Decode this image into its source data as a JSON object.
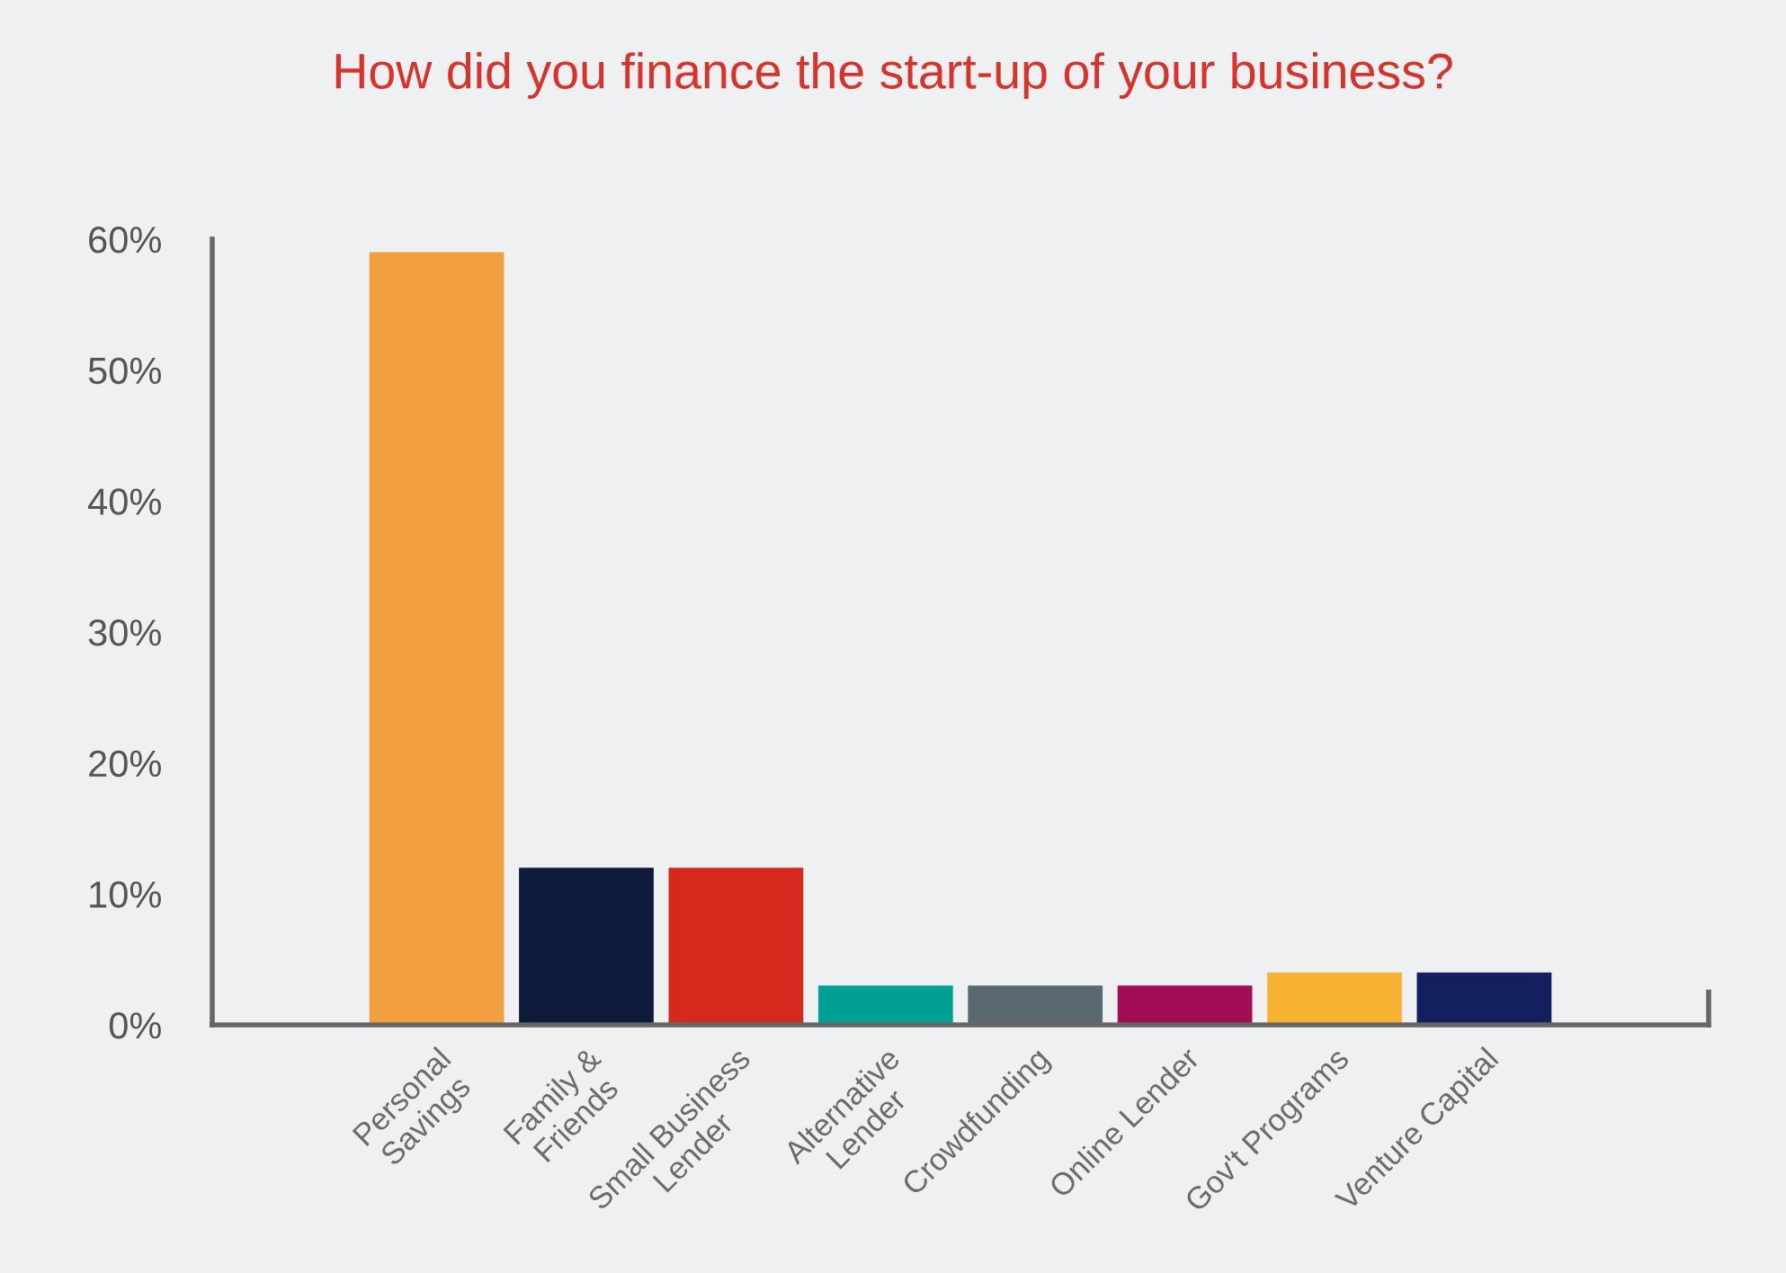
{
  "chart_data": {
    "type": "bar",
    "title": "How did you finance the start-up of your business?",
    "categories": [
      "Personal\nSavings",
      "Family &\nFriends",
      "Small Business\nLender",
      "Alternative\nLender",
      "Crowdfunding",
      "Online Lender",
      "Gov't Programs",
      "Venture Capital"
    ],
    "values": [
      59,
      12,
      12,
      3,
      3,
      3,
      4,
      4
    ],
    "colors": [
      "#f29f40",
      "#0e1a3c",
      "#d6291e",
      "#00a095",
      "#5a6870",
      "#a30d55",
      "#f7b133",
      "#122060"
    ],
    "ylim": [
      0,
      60
    ],
    "yticks": [
      {
        "value": 0,
        "label": "0%"
      },
      {
        "value": 10,
        "label": "10%"
      },
      {
        "value": 20,
        "label": "20%"
      },
      {
        "value": 30,
        "label": "30%"
      },
      {
        "value": 40,
        "label": "40%"
      },
      {
        "value": 50,
        "label": "50%"
      },
      {
        "value": 60,
        "label": "60%"
      }
    ],
    "grid": false,
    "legend": false
  }
}
